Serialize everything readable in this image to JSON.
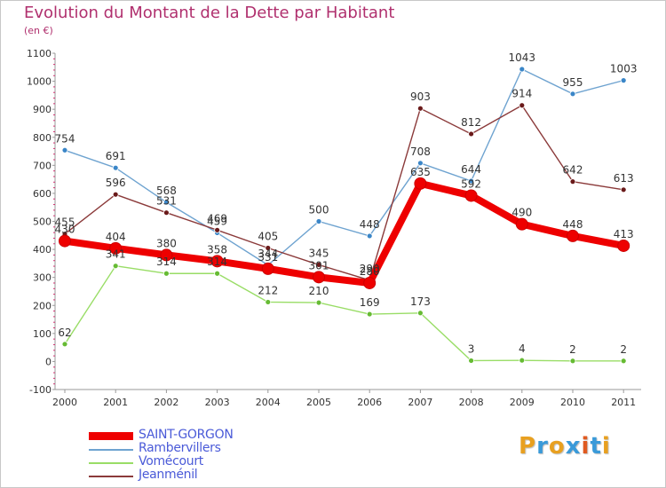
{
  "header": {
    "title": "Evolution du Montant de la Dette par Habitant",
    "unit": "(en €)"
  },
  "logo": {
    "letters": [
      "P",
      "r",
      "o",
      "x",
      "i",
      "t",
      "i"
    ],
    "colors": [
      "#e8a020",
      "#3a9ad9",
      "#e8a020",
      "#3a9ad9",
      "#e05a20",
      "#3a9ad9",
      "#e8a020"
    ]
  },
  "chart_data": {
    "type": "line",
    "title": "Evolution du Montant de la Dette par Habitant",
    "xlabel": "",
    "ylabel": "",
    "categories": [
      "2000",
      "2001",
      "2002",
      "2003",
      "2004",
      "2005",
      "2006",
      "2007",
      "2008",
      "2009",
      "2010",
      "2011"
    ],
    "ylim": [
      -100,
      1100
    ],
    "yticks": [
      -100,
      0,
      100,
      200,
      300,
      400,
      500,
      600,
      700,
      800,
      900,
      1000,
      1100
    ],
    "grid": false,
    "legend_position": "bottom-left",
    "series": [
      {
        "name": "SAINT-GORGON",
        "color": "#ee0000",
        "bold": true,
        "values": [
          430,
          404,
          380,
          358,
          331,
          301,
          280,
          635,
          592,
          490,
          448,
          413
        ]
      },
      {
        "name": "Rambervillers",
        "color": "#6ea3d0",
        "point_color": "#3a86c8",
        "values": [
          754,
          691,
          568,
          459,
          344,
          500,
          448,
          708,
          644,
          1043,
          955,
          1003
        ]
      },
      {
        "name": "Vomécourt",
        "color": "#99dd66",
        "point_color": "#66bb33",
        "values": [
          62,
          341,
          314,
          314,
          212,
          210,
          169,
          173,
          3,
          4,
          2,
          2
        ]
      },
      {
        "name": "Jeanménil",
        "color": "#8b3a3a",
        "point_color": "#6a1a1a",
        "values": [
          455,
          596,
          531,
          469,
          405,
          345,
          290,
          903,
          812,
          914,
          642,
          613
        ]
      }
    ]
  }
}
